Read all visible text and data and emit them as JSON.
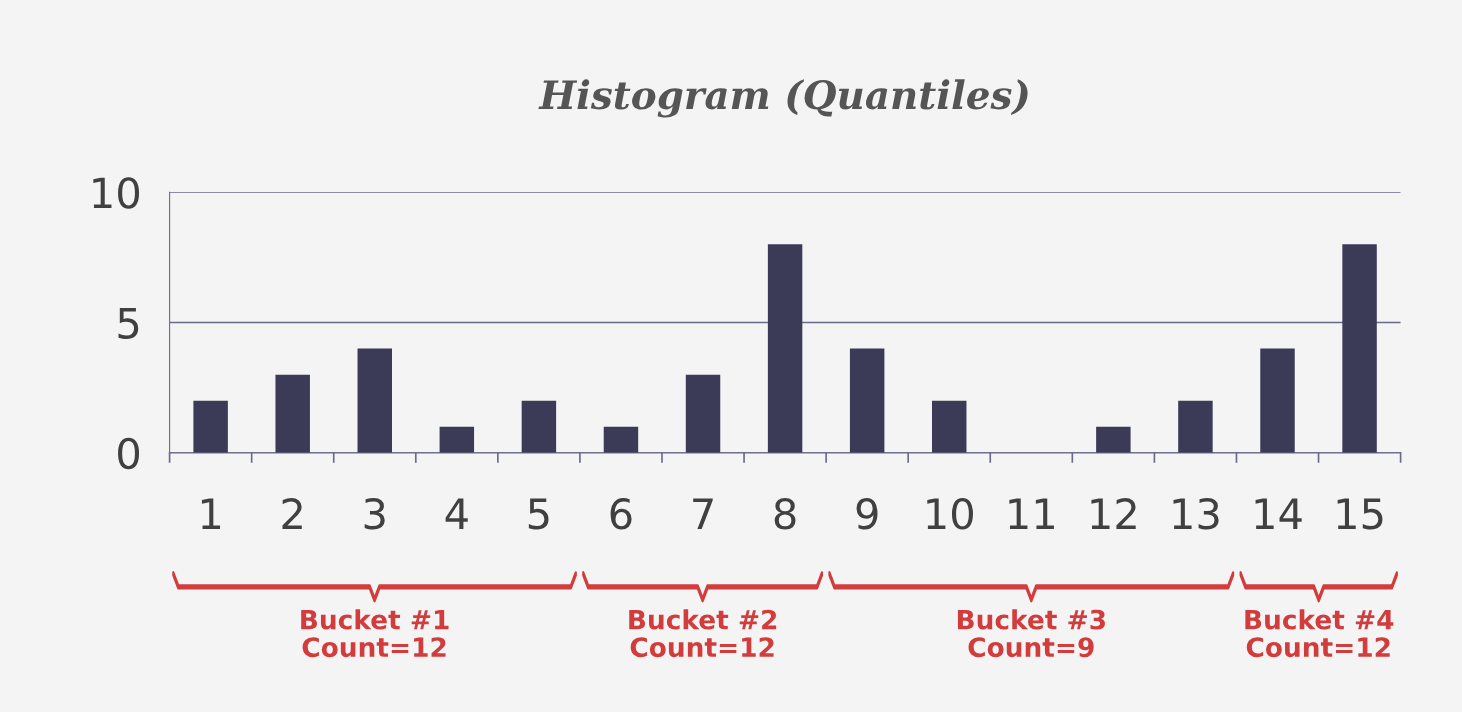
{
  "chart_data": {
    "type": "bar",
    "title": "Histogram (Quantiles)",
    "categories": [
      "1",
      "2",
      "3",
      "4",
      "5",
      "6",
      "7",
      "8",
      "9",
      "10",
      "11",
      "12",
      "13",
      "14",
      "15"
    ],
    "values": [
      2,
      3,
      4,
      1,
      2,
      1,
      3,
      8,
      4,
      2,
      0,
      1,
      2,
      4,
      8
    ],
    "color": "#3b3b58",
    "ylim": [
      0,
      10
    ],
    "yticks": [
      0,
      5,
      10
    ],
    "grid": "y",
    "annotations": [
      "Bucket #1\nCount=12",
      "Bucket #2\nCount=12",
      "Bucket #3\nCount=9",
      "Bucket #4\nCount=12"
    ]
  }
}
